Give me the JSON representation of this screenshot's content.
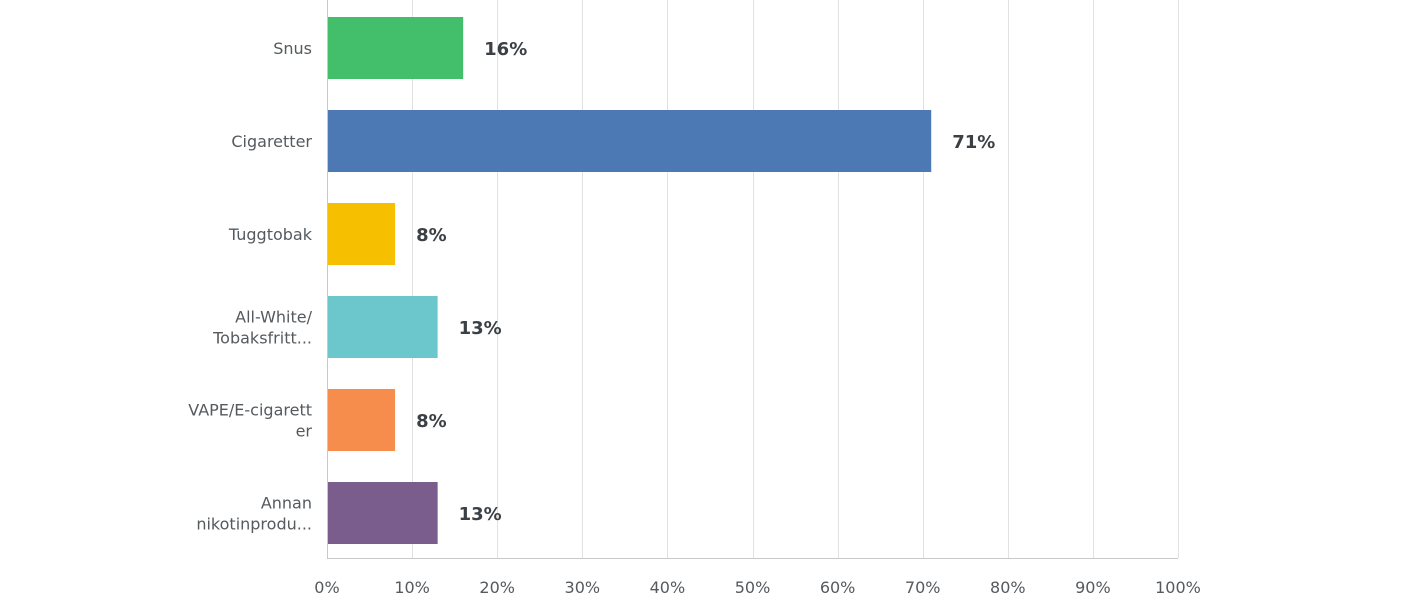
{
  "chart_data": {
    "type": "bar",
    "orientation": "horizontal",
    "categories": [
      [
        "Snus"
      ],
      [
        "Cigaretter"
      ],
      [
        "Tuggtobak"
      ],
      [
        "All-White/",
        "Tobaksfritt..."
      ],
      [
        "VAPE/E-cigarett",
        "er"
      ],
      [
        "Annan",
        "nikotinprodu..."
      ]
    ],
    "values": [
      16,
      71,
      8,
      13,
      8,
      13
    ],
    "data_labels": [
      "16%",
      "71%",
      "8%",
      "13%",
      "8%",
      "13%"
    ],
    "colors": [
      "#43bf6b",
      "#4c79b3",
      "#f6bf00",
      "#6cc7cc",
      "#f68d4d",
      "#7a5d8c"
    ],
    "xlim": [
      0,
      100
    ],
    "x_ticks": [
      0,
      10,
      20,
      30,
      40,
      50,
      60,
      70,
      80,
      90,
      100
    ],
    "x_tick_labels": [
      "0%",
      "10%",
      "20%",
      "30%",
      "40%",
      "50%",
      "60%",
      "70%",
      "80%",
      "90%",
      "100%"
    ],
    "grid": "vertical",
    "legend": "none",
    "title": "",
    "xlabel": "",
    "ylabel": ""
  }
}
